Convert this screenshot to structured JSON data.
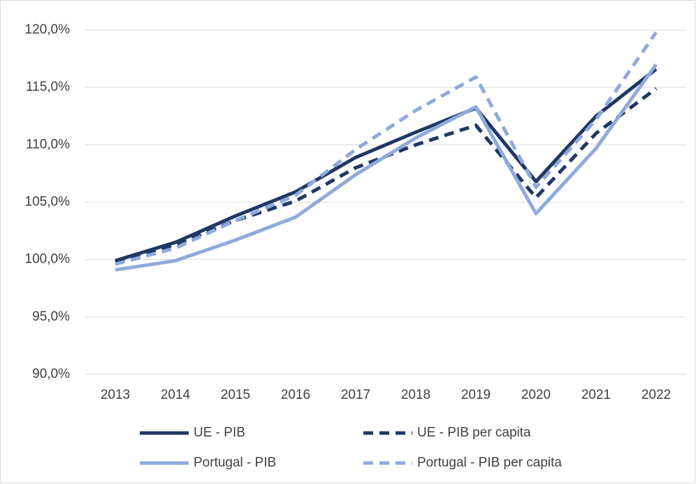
{
  "chart_data": {
    "type": "line",
    "categories": [
      "2013",
      "2014",
      "2015",
      "2016",
      "2017",
      "2018",
      "2019",
      "2020",
      "2021",
      "2022"
    ],
    "series": [
      {
        "name": "UE - PIB",
        "color": "#1f3864",
        "style": "solid",
        "values": [
          99.9,
          101.5,
          103.8,
          105.9,
          108.9,
          111.1,
          113.2,
          106.8,
          112.5,
          116.6
        ]
      },
      {
        "name": "UE - PIB per capita",
        "color": "#1f3864",
        "style": "dashed",
        "values": [
          99.8,
          101.3,
          103.4,
          105.1,
          108.0,
          110.0,
          111.7,
          105.4,
          111.0,
          114.9
        ]
      },
      {
        "name": "Portugal - PIB",
        "color": "#8eaadb",
        "style": "solid",
        "values": [
          99.1,
          99.9,
          101.7,
          103.7,
          107.4,
          110.6,
          113.3,
          104.0,
          109.7,
          117.0
        ]
      },
      {
        "name": "Portugal - PIB per capita",
        "color": "#8eaadb",
        "style": "dashed",
        "values": [
          99.6,
          101.0,
          103.4,
          105.6,
          109.6,
          113.0,
          115.9,
          106.3,
          112.2,
          119.8
        ]
      }
    ],
    "ylim": [
      90,
      120
    ],
    "yticks": [
      {
        "value": 90,
        "label": "90,0%"
      },
      {
        "value": 95,
        "label": "95,0%"
      },
      {
        "value": 100,
        "label": "100,0%"
      },
      {
        "value": 105,
        "label": "105,0%"
      },
      {
        "value": 110,
        "label": "110,0%"
      },
      {
        "value": 115,
        "label": "115,0%"
      },
      {
        "value": 120,
        "label": "120,0%"
      }
    ],
    "grid": true,
    "legend": "bottom"
  }
}
